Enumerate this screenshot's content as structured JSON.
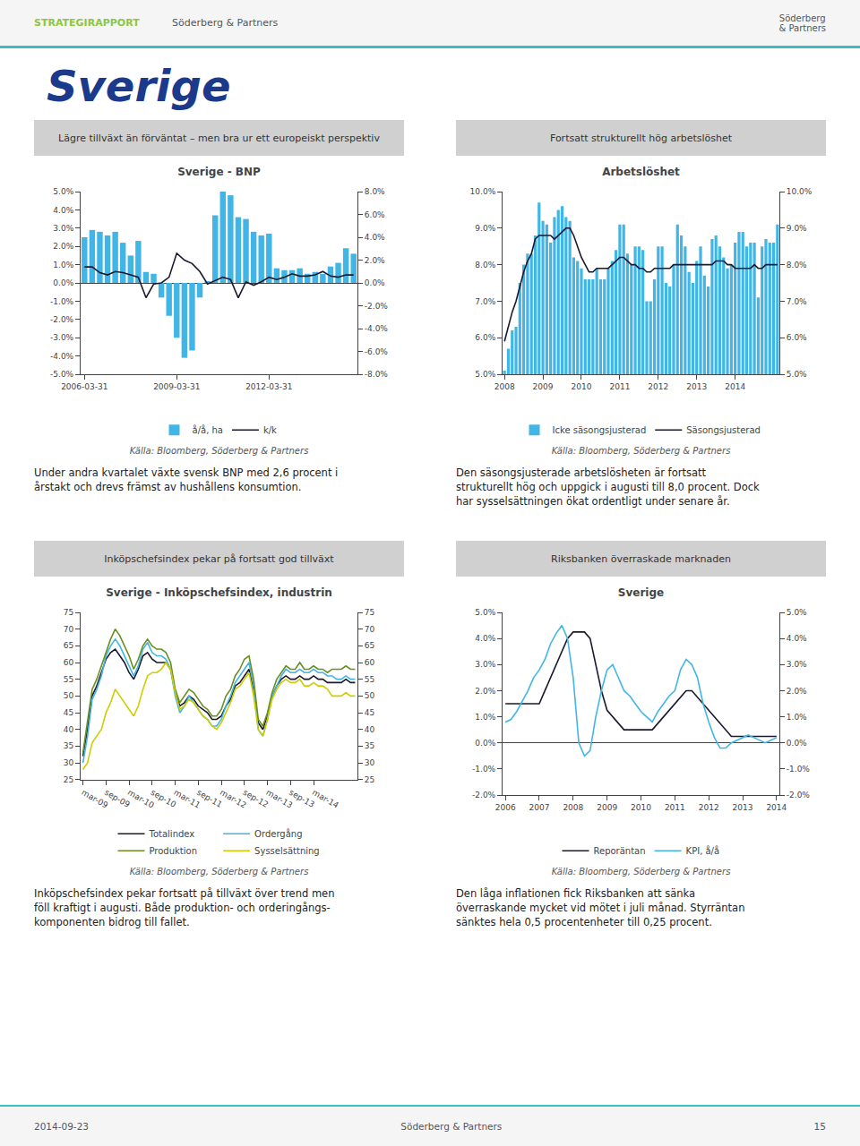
{
  "title": "Sverige",
  "header": [
    "STRATEGIRAPPORT",
    "Söderberg & Partners",
    "Söderberg\n& Partners"
  ],
  "footer": [
    "2014-09-23",
    "Söderberg & Partners",
    "15"
  ],
  "chart_data": [
    {
      "type": "bar",
      "title": "Lägre tillväxt än förväntat – men bra ur ett europeiskt perspektiv",
      "subtitle": "Sverige - BNP",
      "source": "Källa: Bloomberg, Söderberg & Partners",
      "text": "Under andra kvartalet växte svensk BNP med 2,6 procent i\nårstakt och drevs främst av hushållens konsumtion.",
      "categories": [
        "2006-03-31",
        null,
        null,
        null,
        null,
        null,
        null,
        null,
        null,
        null,
        null,
        null,
        "2009-03-31",
        null,
        null,
        null,
        null,
        null,
        null,
        null,
        null,
        null,
        null,
        null,
        "2012-03-31",
        null,
        null,
        null,
        null,
        null,
        null,
        null,
        null,
        null,
        null,
        null
      ],
      "series": [
        {
          "name": "å/å, ha",
          "type": "bar",
          "color": "#41B6E6",
          "values": [
            2.5,
            2.9,
            2.8,
            2.6,
            2.8,
            2.2,
            1.5,
            2.3,
            0.6,
            0.5,
            -0.8,
            -1.8,
            -3.0,
            -4.1,
            -3.7,
            -0.8,
            0.1,
            3.7,
            5.0,
            4.8,
            3.6,
            3.5,
            2.8,
            2.6,
            2.7,
            0.8,
            0.7,
            0.7,
            0.8,
            0.5,
            0.6,
            0.5,
            0.9,
            1.1,
            1.9,
            1.6
          ]
        },
        {
          "name": "k/k",
          "type": "line",
          "color": "#1a1a2e",
          "axis": "y2",
          "values": [
            1.4,
            1.4,
            0.9,
            0.7,
            1.0,
            0.9,
            0.7,
            0.5,
            -1.3,
            -0.1,
            0.0,
            0.5,
            2.6,
            2.0,
            1.7,
            1.0,
            -0.1,
            0.2,
            0.5,
            0.3,
            -1.3,
            0.1,
            -0.2,
            0.1,
            0.5,
            0.3,
            0.5,
            0.8,
            0.6,
            0.6,
            0.7,
            1.0,
            0.6,
            0.5,
            0.7,
            0.7
          ]
        }
      ],
      "ylim": [
        -5.0,
        5.0
      ],
      "yticks": [
        {
          "value": -5,
          "label": "-5.0%"
        },
        {
          "value": -4,
          "label": "-4.0%"
        },
        {
          "value": -3,
          "label": "-3.0%"
        },
        {
          "value": -2,
          "label": "-2.0%"
        },
        {
          "value": -1,
          "label": "-1.0%"
        },
        {
          "value": 0,
          "label": "0.0%"
        },
        {
          "value": 1,
          "label": "1.0%"
        },
        {
          "value": 2,
          "label": "2.0%"
        },
        {
          "value": 3,
          "label": "3.0%"
        },
        {
          "value": 4,
          "label": "4.0%"
        },
        {
          "value": 5,
          "label": "5.0%"
        }
      ],
      "y2lim": [
        -8.0,
        8.0
      ],
      "y2ticks": [
        {
          "value": -8,
          "label": "-8.0%"
        },
        {
          "value": -6,
          "label": "-6.0%"
        },
        {
          "value": -4,
          "label": "-4.0%"
        },
        {
          "value": -2,
          "label": "-2.0%"
        },
        {
          "value": 0,
          "label": "0.0%"
        },
        {
          "value": 2,
          "label": "2.0%"
        },
        {
          "value": 4,
          "label": "4.0%"
        },
        {
          "value": 6,
          "label": "6.0%"
        },
        {
          "value": 8,
          "label": "8.0%"
        }
      ],
      "grid": false,
      "legend": "bottom"
    },
    {
      "type": "bar",
      "title": "Fortsatt strukturellt hög arbetslöshet",
      "subtitle": "Arbetslöshet",
      "source": "Källa: Bloomberg, Söderberg & Partners",
      "text": "Den säsongsjusterade arbetslösheten är fortsatt\nstrukturellt hög och uppgick i augusti till 8,0 procent. Dock\nhar sysselsättningen ökat ordentligt under senare år.",
      "categories": [
        "2008",
        null,
        null,
        null,
        null,
        null,
        null,
        null,
        null,
        null,
        "2009",
        null,
        null,
        null,
        null,
        null,
        null,
        null,
        null,
        null,
        "2010",
        null,
        null,
        null,
        null,
        null,
        null,
        null,
        null,
        null,
        "2011",
        null,
        null,
        null,
        null,
        null,
        null,
        null,
        null,
        null,
        "2012",
        null,
        null,
        null,
        null,
        null,
        null,
        null,
        null,
        null,
        "2013",
        null,
        null,
        null,
        null,
        null,
        null,
        null,
        null,
        null,
        "2014",
        null,
        null,
        null,
        null,
        null,
        null,
        null,
        null,
        null,
        null,
        null
      ],
      "series": [
        {
          "name": "Icke säsongsjusterad",
          "type": "bar",
          "color": "#41B6E6",
          "values": [
            5.1,
            5.7,
            6.2,
            6.3,
            7.5,
            8.0,
            8.3,
            8.3,
            8.8,
            9.7,
            9.2,
            9.1,
            8.6,
            9.3,
            9.5,
            9.6,
            9.3,
            9.2,
            8.2,
            8.1,
            7.9,
            7.6,
            7.6,
            7.6,
            7.9,
            7.6,
            7.6,
            7.9,
            8.1,
            8.4,
            9.1,
            9.1,
            8.3,
            8.0,
            8.5,
            8.5,
            8.4,
            7.0,
            7.0,
            7.6,
            8.5,
            8.5,
            7.5,
            7.4,
            8.0,
            9.1,
            8.8,
            8.5,
            7.8,
            7.5,
            8.1,
            8.5,
            7.7,
            7.4,
            8.7,
            8.8,
            8.5,
            8.2,
            7.9,
            8.0,
            8.6,
            8.9,
            8.9,
            8.5,
            8.6,
            8.6,
            7.1,
            8.5,
            8.7,
            8.6,
            8.6,
            9.1
          ]
        },
        {
          "name": "Säsongsjusterad",
          "type": "line",
          "color": "#1a1a2e",
          "axis": "y2",
          "values": [
            5.9,
            6.3,
            6.7,
            7.0,
            7.4,
            7.8,
            8.1,
            8.3,
            8.7,
            8.8,
            8.8,
            8.8,
            8.8,
            8.7,
            8.8,
            8.9,
            9.0,
            9.0,
            8.8,
            8.5,
            8.2,
            8.0,
            7.8,
            7.8,
            7.9,
            7.9,
            7.9,
            7.9,
            8.0,
            8.1,
            8.2,
            8.2,
            8.1,
            8.0,
            8.0,
            7.9,
            7.9,
            7.8,
            7.8,
            7.9,
            7.9,
            7.9,
            7.9,
            7.9,
            8.0,
            8.0,
            8.0,
            8.0,
            8.0,
            8.0,
            8.0,
            8.0,
            8.0,
            8.0,
            8.0,
            8.1,
            8.1,
            8.1,
            8.0,
            8.0,
            7.9,
            7.9,
            7.9,
            7.9,
            7.9,
            8.0,
            7.9,
            7.9,
            8.0,
            8.0,
            8.0,
            8.0
          ]
        }
      ],
      "ylim": [
        5.0,
        10.0
      ],
      "yticks": [
        {
          "value": 5,
          "label": "5.0%"
        },
        {
          "value": 6,
          "label": "6.0%"
        },
        {
          "value": 7,
          "label": "7.0%"
        },
        {
          "value": 8,
          "label": "8.0%"
        },
        {
          "value": 9,
          "label": "9.0%"
        },
        {
          "value": 10,
          "label": "10.0%"
        }
      ],
      "y2lim": [
        5.0,
        10.0
      ],
      "y2ticks": [
        {
          "value": 5,
          "label": "5.0%"
        },
        {
          "value": 6,
          "label": "6.0%"
        },
        {
          "value": 7,
          "label": "7.0%"
        },
        {
          "value": 8,
          "label": "8.0%"
        },
        {
          "value": 9,
          "label": "9.0%"
        },
        {
          "value": 10,
          "label": "10.0%"
        }
      ],
      "grid": false,
      "legend": "bottom"
    },
    {
      "type": "line",
      "title": "Inköpschefsindex pekar på fortsatt god tillväxt",
      "subtitle": "Sverige - Inköpschefsindex, industrin",
      "source": "Källa: Bloomberg, Söderberg & Partners",
      "text": "Inköpschefsindex pekar fortsatt på tillväxt över trend men\nföll kraftigt i augusti. Både produktion- och orderingångs-\nkomponenten bidrog till fallet.",
      "categories": [
        "mar-09",
        null,
        null,
        null,
        null,
        "sep-09",
        null,
        null,
        null,
        null,
        "mar-10",
        null,
        null,
        null,
        null,
        "sep-10",
        null,
        null,
        null,
        null,
        "mar-11",
        null,
        null,
        null,
        null,
        "sep-11",
        null,
        null,
        null,
        null,
        "mar-12",
        null,
        null,
        null,
        null,
        "sep-12",
        null,
        null,
        null,
        null,
        "mar-13",
        null,
        null,
        null,
        null,
        "sep-13",
        null,
        null,
        null,
        null,
        "mar-14",
        null,
        null,
        null,
        null,
        null,
        null,
        null,
        null,
        null
      ],
      "series": [
        {
          "name": "Totalindex",
          "color": "#1a1a2e",
          "values": [
            32,
            40,
            50,
            53,
            57,
            61,
            63,
            64,
            62,
            60,
            57,
            55,
            58,
            62,
            63,
            61,
            60,
            60,
            60,
            58,
            51,
            47,
            48,
            50,
            49,
            47,
            46,
            45,
            43,
            43,
            44,
            47,
            49,
            53,
            54,
            56,
            58,
            52,
            42,
            40,
            44,
            50,
            53,
            55,
            56,
            55,
            55,
            56,
            55,
            55,
            56,
            55,
            55,
            54,
            54,
            54,
            54,
            55,
            54,
            54
          ]
        },
        {
          "name": "Ordergång",
          "color": "#41B6E6",
          "values": [
            30,
            38,
            49,
            52,
            56,
            62,
            65,
            67,
            65,
            62,
            59,
            56,
            59,
            64,
            66,
            63,
            62,
            62,
            61,
            58,
            50,
            45,
            47,
            50,
            48,
            46,
            44,
            43,
            41,
            41,
            43,
            47,
            50,
            54,
            56,
            58,
            60,
            53,
            40,
            38,
            43,
            50,
            53,
            56,
            58,
            57,
            57,
            58,
            57,
            57,
            58,
            57,
            57,
            56,
            56,
            55,
            55,
            56,
            55,
            55
          ]
        },
        {
          "name": "Produktion",
          "color": "#6B8E23",
          "values": [
            33,
            42,
            52,
            55,
            59,
            63,
            67,
            70,
            68,
            65,
            62,
            58,
            61,
            65,
            67,
            65,
            64,
            64,
            63,
            60,
            52,
            48,
            50,
            52,
            51,
            49,
            47,
            46,
            44,
            44,
            46,
            50,
            52,
            56,
            58,
            61,
            62,
            55,
            43,
            41,
            45,
            51,
            55,
            57,
            59,
            58,
            58,
            60,
            58,
            58,
            59,
            58,
            58,
            57,
            58,
            58,
            58,
            59,
            58,
            58
          ]
        },
        {
          "name": "Sysselsättning",
          "color": "#CDCD00",
          "values": [
            28,
            30,
            36,
            38,
            40,
            45,
            48,
            52,
            50,
            48,
            46,
            44,
            47,
            52,
            56,
            57,
            57,
            58,
            60,
            58,
            51,
            46,
            47,
            49,
            48,
            46,
            44,
            43,
            41,
            40,
            42,
            45,
            48,
            52,
            53,
            55,
            57,
            50,
            40,
            38,
            43,
            49,
            52,
            54,
            55,
            54,
            54,
            55,
            53,
            53,
            54,
            53,
            53,
            52,
            50,
            50,
            50,
            51,
            50,
            50
          ]
        }
      ],
      "ylim": [
        25,
        75
      ],
      "yticks": [
        25,
        30,
        35,
        40,
        45,
        50,
        55,
        60,
        65,
        70,
        75
      ],
      "y2lim": [
        25,
        75
      ],
      "y2ticks": [
        25,
        30,
        35,
        40,
        45,
        50,
        55,
        60,
        65,
        70,
        75
      ],
      "grid": false,
      "legend": "bottom"
    },
    {
      "type": "line",
      "title": "Riksbanken överraskade marknaden",
      "subtitle": "Sverige",
      "source": "Källa: Bloomberg, Söderberg & Partners",
      "text": "Den låga inflationen fick Riksbanken att sänka\növerraskande mycket vid mötet i juli månad. Styrräntan\nsänktes hela 0,5 procentenheter till 0,25 procent.",
      "categories": [
        "2006",
        null,
        null,
        null,
        null,
        null,
        "2007",
        null,
        null,
        null,
        null,
        null,
        "2008",
        null,
        null,
        null,
        null,
        null,
        "2009",
        null,
        null,
        null,
        null,
        null,
        "2010",
        null,
        null,
        null,
        null,
        null,
        "2011",
        null,
        null,
        null,
        null,
        null,
        "2012",
        null,
        null,
        null,
        null,
        null,
        "2013",
        null,
        null,
        null,
        null,
        null,
        "2014"
      ],
      "series": [
        {
          "name": "Reporäntan",
          "color": "#1a1a2e",
          "values": [
            1.5,
            1.5,
            1.5,
            1.5,
            1.5,
            1.5,
            1.5,
            2.0,
            2.5,
            3.0,
            3.5,
            4.0,
            4.25,
            4.25,
            4.25,
            4.0,
            3.0,
            2.0,
            1.25,
            1.0,
            0.75,
            0.5,
            0.5,
            0.5,
            0.5,
            0.5,
            0.5,
            0.75,
            1.0,
            1.25,
            1.5,
            1.75,
            2.0,
            2.0,
            1.75,
            1.5,
            1.25,
            1.0,
            0.75,
            0.5,
            0.25,
            0.25,
            0.25,
            0.25,
            0.25,
            0.25,
            0.25,
            0.25,
            0.25
          ]
        },
        {
          "name": "KPI, å/å",
          "color": "#41B6E6",
          "values": [
            0.8,
            0.9,
            1.2,
            1.6,
            2.0,
            2.5,
            2.8,
            3.2,
            3.8,
            4.2,
            4.5,
            4.0,
            2.5,
            0.0,
            -0.5,
            -0.3,
            1.0,
            2.0,
            2.8,
            3.0,
            2.5,
            2.0,
            1.8,
            1.5,
            1.2,
            1.0,
            0.8,
            1.2,
            1.5,
            1.8,
            2.0,
            2.8,
            3.2,
            3.0,
            2.5,
            1.5,
            0.8,
            0.2,
            -0.2,
            -0.2,
            0.0,
            0.1,
            0.2,
            0.3,
            0.2,
            0.1,
            0.0,
            0.1,
            0.2
          ]
        }
      ],
      "ylim": [
        -2.0,
        5.0
      ],
      "yticks": [
        {
          "value": -2,
          "label": "-2.0%"
        },
        {
          "value": -1,
          "label": "-1.0%"
        },
        {
          "value": 0,
          "label": "0.0%"
        },
        {
          "value": 1,
          "label": "1.0%"
        },
        {
          "value": 2,
          "label": "2.0%"
        },
        {
          "value": 3,
          "label": "3.0%"
        },
        {
          "value": 4,
          "label": "4.0%"
        },
        {
          "value": 5,
          "label": "5.0%"
        }
      ],
      "y2lim": [
        -2.0,
        5.0
      ],
      "y2ticks": [
        {
          "value": -2,
          "label": "-2.0%"
        },
        {
          "value": -1,
          "label": "-1.0%"
        },
        {
          "value": 0,
          "label": "0.0%"
        },
        {
          "value": 1,
          "label": "1.0%"
        },
        {
          "value": 2,
          "label": "2.0%"
        },
        {
          "value": 3,
          "label": "3.0%"
        },
        {
          "value": 4,
          "label": "4.0%"
        },
        {
          "value": 5,
          "label": "5.0%"
        }
      ],
      "grid": false,
      "legend": "bottom"
    }
  ]
}
